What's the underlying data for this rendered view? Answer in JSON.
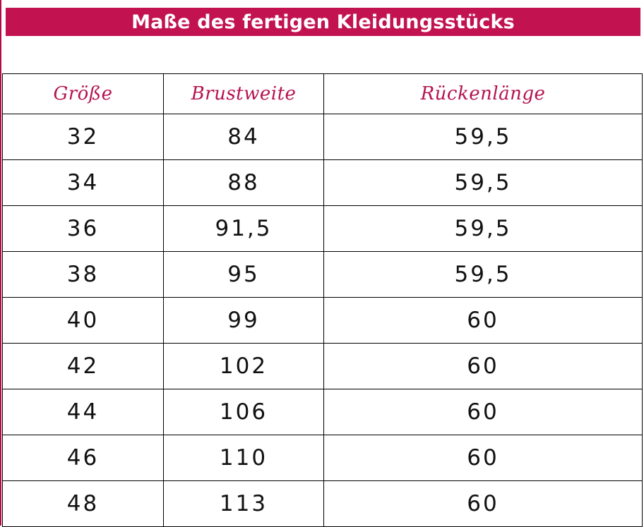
{
  "title": "Maße des fertigen Kleidungsstücks",
  "colors": {
    "banner": "#c2124f",
    "header_text": "#b51350",
    "body_text": "#111111"
  },
  "table": {
    "headers": [
      "Größe",
      "Brustweite",
      "Rückenlänge"
    ],
    "rows": [
      [
        "32",
        "84",
        "59,5"
      ],
      [
        "34",
        "88",
        "59,5"
      ],
      [
        "36",
        "91,5",
        "59,5"
      ],
      [
        "38",
        "95",
        "59,5"
      ],
      [
        "40",
        "99",
        "60"
      ],
      [
        "42",
        "102",
        "60"
      ],
      [
        "44",
        "106",
        "60"
      ],
      [
        "46",
        "110",
        "60"
      ],
      [
        "48",
        "113",
        "60"
      ]
    ]
  }
}
